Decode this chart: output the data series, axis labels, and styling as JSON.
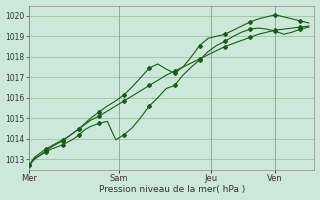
{
  "background_color": "#cce8d8",
  "grid_color": "#99bb99",
  "line_color": "#1a5c1a",
  "marker_color": "#1a5c1a",
  "xlabel": "Pression niveau de la mer( hPa )",
  "ylim": [
    1012.5,
    1020.5
  ],
  "yticks": [
    1013,
    1014,
    1015,
    1016,
    1017,
    1018,
    1019,
    1020
  ],
  "day_labels": [
    "Mer",
    "Sam",
    "Jeu",
    "Ven"
  ],
  "day_positions": [
    0.0,
    0.32,
    0.65,
    0.88
  ],
  "vline_positions": [
    0.0,
    0.32,
    0.65,
    0.88
  ],
  "series1_x": [
    0.0,
    0.02,
    0.04,
    0.06,
    0.08,
    0.1,
    0.12,
    0.14,
    0.16,
    0.18,
    0.2,
    0.22,
    0.25,
    0.28,
    0.31,
    0.34,
    0.37,
    0.4,
    0.43,
    0.46,
    0.49,
    0.52,
    0.55,
    0.58,
    0.61,
    0.64,
    0.67,
    0.7,
    0.73,
    0.76,
    0.79,
    0.82,
    0.85,
    0.88,
    0.91,
    0.94,
    0.97,
    1.0
  ],
  "series1_y": [
    1012.7,
    1013.0,
    1013.2,
    1013.4,
    1013.6,
    1013.75,
    1013.9,
    1014.1,
    1014.3,
    1014.5,
    1014.7,
    1014.9,
    1015.1,
    1015.35,
    1015.6,
    1015.85,
    1016.1,
    1016.35,
    1016.6,
    1016.85,
    1017.1,
    1017.3,
    1017.5,
    1017.7,
    1017.9,
    1018.1,
    1018.3,
    1018.5,
    1018.65,
    1018.8,
    1018.95,
    1019.1,
    1019.2,
    1019.3,
    1019.35,
    1019.4,
    1019.45,
    1019.5
  ],
  "series2_x": [
    0.0,
    0.02,
    0.04,
    0.06,
    0.08,
    0.1,
    0.12,
    0.14,
    0.16,
    0.18,
    0.2,
    0.22,
    0.25,
    0.28,
    0.31,
    0.34,
    0.37,
    0.4,
    0.43,
    0.46,
    0.49,
    0.52,
    0.55,
    0.58,
    0.61,
    0.64,
    0.67,
    0.7,
    0.73,
    0.76,
    0.79,
    0.82,
    0.85,
    0.88,
    0.91,
    0.94,
    0.97,
    1.0
  ],
  "series2_y": [
    1012.7,
    1013.1,
    1013.3,
    1013.5,
    1013.65,
    1013.8,
    1013.95,
    1014.1,
    1014.3,
    1014.5,
    1014.75,
    1015.0,
    1015.3,
    1015.6,
    1015.85,
    1016.15,
    1016.55,
    1017.0,
    1017.45,
    1017.65,
    1017.4,
    1017.2,
    1017.5,
    1018.0,
    1018.55,
    1018.9,
    1019.0,
    1019.1,
    1019.3,
    1019.5,
    1019.7,
    1019.85,
    1019.95,
    1020.05,
    1019.95,
    1019.85,
    1019.75,
    1019.65
  ],
  "series3_x": [
    0.0,
    0.02,
    0.04,
    0.06,
    0.08,
    0.1,
    0.12,
    0.14,
    0.16,
    0.18,
    0.2,
    0.22,
    0.25,
    0.28,
    0.31,
    0.34,
    0.37,
    0.4,
    0.43,
    0.46,
    0.49,
    0.52,
    0.55,
    0.58,
    0.61,
    0.64,
    0.67,
    0.7,
    0.73,
    0.76,
    0.79,
    0.82,
    0.85,
    0.88,
    0.91,
    0.94,
    0.97,
    1.0
  ],
  "series3_y": [
    1012.7,
    1013.05,
    1013.2,
    1013.35,
    1013.5,
    1013.6,
    1013.7,
    1013.85,
    1014.0,
    1014.2,
    1014.45,
    1014.6,
    1014.75,
    1014.85,
    1013.95,
    1014.2,
    1014.55,
    1015.05,
    1015.6,
    1016.0,
    1016.45,
    1016.6,
    1017.1,
    1017.5,
    1017.85,
    1018.25,
    1018.55,
    1018.75,
    1019.0,
    1019.2,
    1019.35,
    1019.4,
    1019.35,
    1019.25,
    1019.1,
    1019.2,
    1019.35,
    1019.45
  ]
}
